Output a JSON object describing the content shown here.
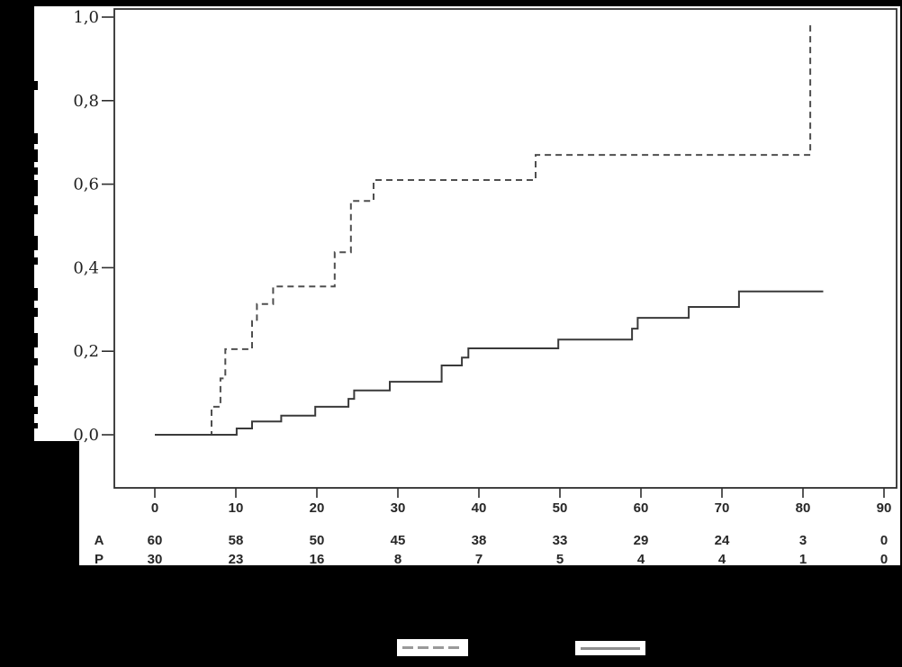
{
  "figure": {
    "background_color": "#000000",
    "panel_color": "#ffffff",
    "frame_color": "#2e2e2e",
    "axis_titles_obscured": true,
    "legend_labels_obscured": true
  },
  "chart_data": {
    "type": "line",
    "subtype": "kaplan-meier-step",
    "title": "",
    "xlabel": "",
    "ylabel": "",
    "xlim": [
      0,
      90
    ],
    "ylim": [
      0.0,
      1.0
    ],
    "grid": false,
    "x_ticks": [
      0,
      10,
      20,
      30,
      40,
      50,
      60,
      70,
      80,
      90
    ],
    "y_tick_labels": [
      "0,0",
      "0,2",
      "0,4",
      "0,6",
      "0,8",
      "1,0"
    ],
    "y_tick_values": [
      0,
      0.2,
      0.4,
      0.6,
      0.8,
      1.0
    ],
    "series": [
      {
        "name": "dashed-curve",
        "line_style": "dashed",
        "color": "#4f4f4f",
        "steps": [
          [
            0,
            0
          ],
          [
            7,
            0
          ],
          [
            7,
            0.067
          ],
          [
            8.1,
            0.067
          ],
          [
            8.1,
            0.135
          ],
          [
            8.7,
            0.135
          ],
          [
            8.7,
            0.205
          ],
          [
            12,
            0.205
          ],
          [
            12,
            0.272
          ],
          [
            12.6,
            0.272
          ],
          [
            12.6,
            0.313
          ],
          [
            14.6,
            0.313
          ],
          [
            14.6,
            0.355
          ],
          [
            22.2,
            0.355
          ],
          [
            22.2,
            0.437
          ],
          [
            24.2,
            0.437
          ],
          [
            24.2,
            0.56
          ],
          [
            27,
            0.56
          ],
          [
            27,
            0.61
          ],
          [
            47,
            0.61
          ],
          [
            47,
            0.67
          ],
          [
            80.9,
            0.67
          ],
          [
            80.9,
            0.99
          ]
        ]
      },
      {
        "name": "solid-curve",
        "line_style": "solid",
        "color": "#3a3a3a",
        "steps": [
          [
            0,
            0
          ],
          [
            10.1,
            0
          ],
          [
            10.1,
            0.015
          ],
          [
            12,
            0.015
          ],
          [
            12,
            0.032
          ],
          [
            15.6,
            0.032
          ],
          [
            15.6,
            0.046
          ],
          [
            19.8,
            0.046
          ],
          [
            19.8,
            0.067
          ],
          [
            23.9,
            0.067
          ],
          [
            23.9,
            0.086
          ],
          [
            24.6,
            0.086
          ],
          [
            24.6,
            0.106
          ],
          [
            29,
            0.106
          ],
          [
            29,
            0.127
          ],
          [
            35.4,
            0.127
          ],
          [
            35.4,
            0.166
          ],
          [
            37.9,
            0.166
          ],
          [
            37.9,
            0.185
          ],
          [
            38.7,
            0.185
          ],
          [
            38.7,
            0.207
          ],
          [
            49.8,
            0.207
          ],
          [
            49.8,
            0.228
          ],
          [
            58.9,
            0.228
          ],
          [
            58.9,
            0.254
          ],
          [
            59.6,
            0.254
          ],
          [
            59.6,
            0.28
          ],
          [
            65.9,
            0.28
          ],
          [
            65.9,
            0.306
          ],
          [
            72.1,
            0.306
          ],
          [
            72.1,
            0.343
          ],
          [
            82.5,
            0.343
          ]
        ]
      }
    ],
    "at_risk_table": {
      "row_labels": [
        "A",
        "P"
      ],
      "rows": [
        [
          60,
          58,
          50,
          45,
          38,
          33,
          29,
          24,
          3,
          0
        ],
        [
          30,
          23,
          16,
          8,
          7,
          5,
          4,
          4,
          1,
          0
        ]
      ]
    },
    "legend": {
      "position": "bottom",
      "entries": [
        {
          "line_style": "dashed",
          "label": ""
        },
        {
          "line_style": "solid",
          "label": ""
        }
      ]
    }
  }
}
